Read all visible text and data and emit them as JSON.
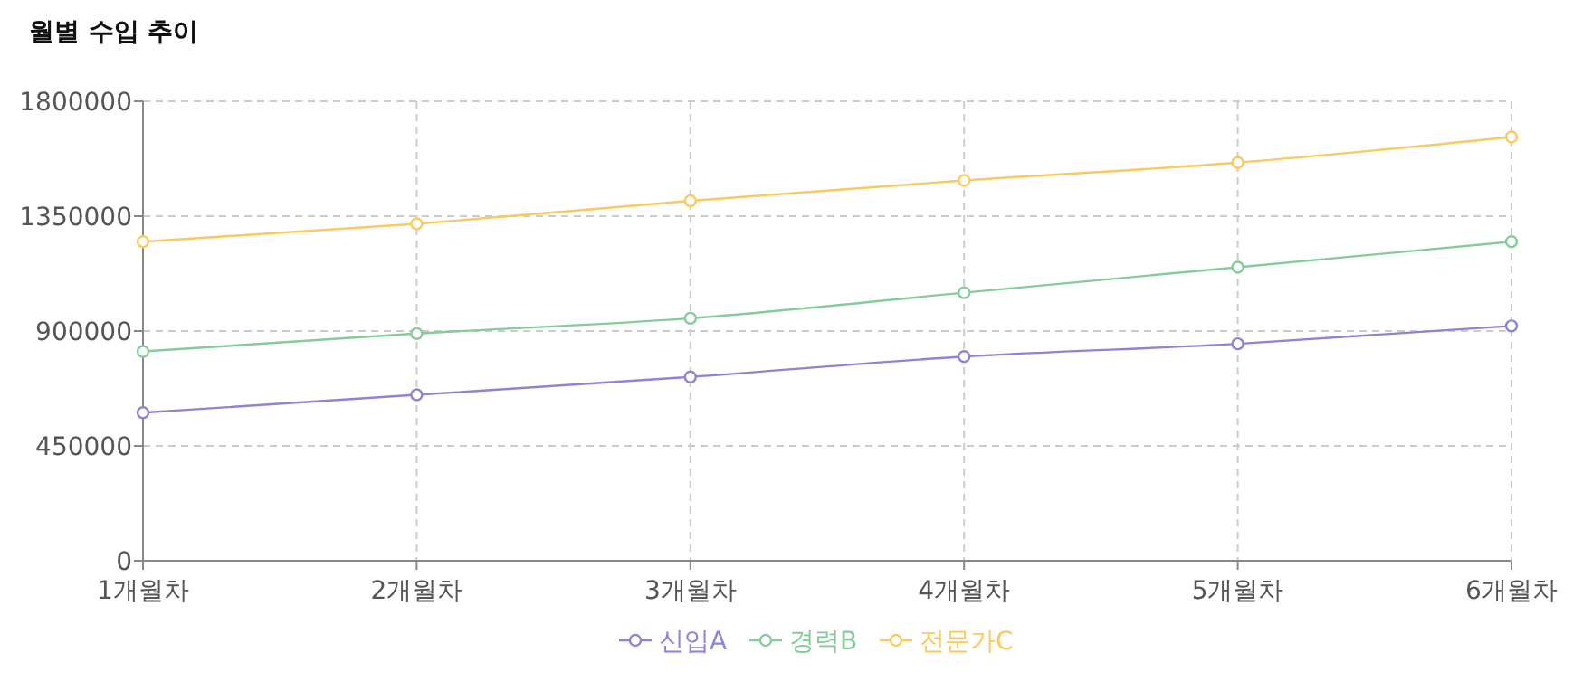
{
  "chart_data": {
    "type": "line",
    "title": "월별 수입 추이",
    "categories": [
      "1개월차",
      "2개월차",
      "3개월차",
      "4개월차",
      "5개월차",
      "6개월차"
    ],
    "series": [
      {
        "name": "신입A",
        "color": "#8c84d6",
        "values": [
          580000,
          650000,
          720000,
          800000,
          850000,
          920000
        ]
      },
      {
        "name": "경력B",
        "color": "#86cc99",
        "values": [
          820000,
          890000,
          950000,
          1050000,
          1150000,
          1250000
        ]
      },
      {
        "name": "전문가C",
        "color": "#fdc85e",
        "values": [
          1250000,
          1320000,
          1410000,
          1490000,
          1560000,
          1660000
        ]
      }
    ],
    "ylim": [
      0,
      1800000
    ],
    "yticks": [
      0,
      450000,
      900000,
      1350000,
      1800000
    ],
    "grid": true,
    "legend": "bottom",
    "marker": "circle",
    "line_style": "solid"
  }
}
